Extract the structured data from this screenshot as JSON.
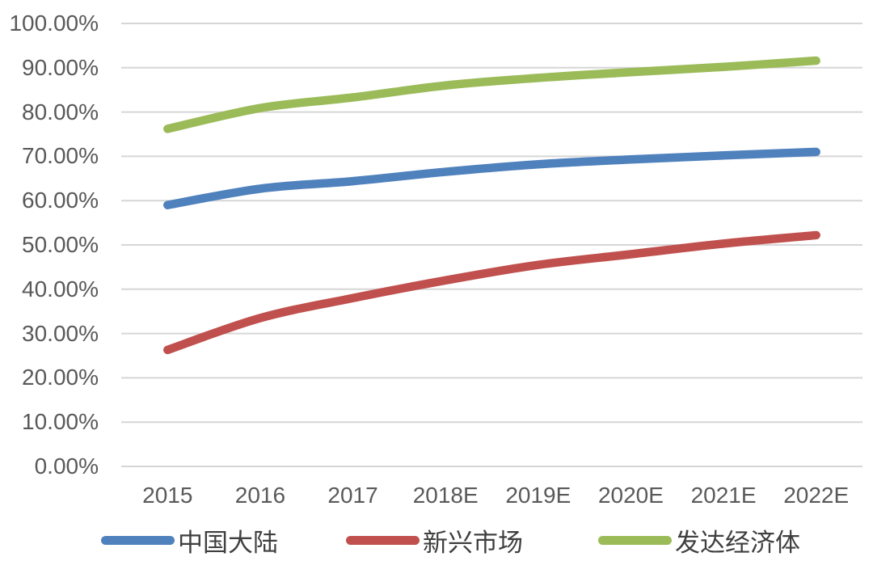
{
  "chart_data": {
    "type": "line",
    "title": "",
    "xlabel": "",
    "ylabel": "",
    "categories": [
      "2015",
      "2016",
      "2017",
      "2018E",
      "2019E",
      "2020E",
      "2021E",
      "2022E"
    ],
    "series": [
      {
        "name": "中国大陆",
        "color": "#4F81BD",
        "values": [
          59.0,
          62.7,
          64.4,
          66.5,
          68.2,
          69.3,
          70.2,
          71.0
        ]
      },
      {
        "name": "新兴市场",
        "color": "#C0504D",
        "values": [
          26.3,
          33.5,
          38.0,
          42.0,
          45.5,
          47.9,
          50.3,
          52.2
        ]
      },
      {
        "name": "发达经济体",
        "color": "#9BBB59",
        "values": [
          76.2,
          80.9,
          83.3,
          86.0,
          87.7,
          89.0,
          90.2,
          91.6
        ]
      }
    ],
    "ylim": [
      0,
      100
    ],
    "ytick_step": 10,
    "ytick_labels": [
      "0.00%",
      "10.00%",
      "20.00%",
      "30.00%",
      "40.00%",
      "50.00%",
      "60.00%",
      "70.00%",
      "80.00%",
      "90.00%",
      "100.00%"
    ],
    "grid": true,
    "gridline_color": "#D6D6D6",
    "axis_label_color": "#595959",
    "legend_position": "bottom"
  },
  "legend": {
    "items": [
      {
        "label": "中国大陆",
        "color": "#4F81BD"
      },
      {
        "label": "新兴市场",
        "color": "#C0504D"
      },
      {
        "label": "发达经济体",
        "color": "#9BBB59"
      }
    ]
  }
}
